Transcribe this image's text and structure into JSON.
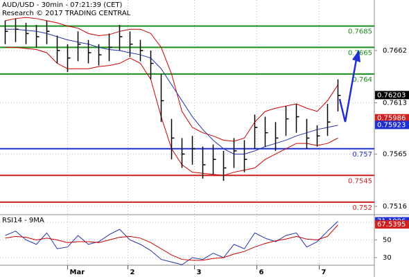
{
  "chart_data": [
    {
      "type": "ohlc",
      "title": "AUD/USD - 30min - 07:21:39 (CET)",
      "subtitle": "Research © 2017 TRADING CENTRAL",
      "x": [
        0,
        1,
        2,
        3,
        4,
        5,
        6,
        7,
        8,
        9,
        10,
        11,
        12,
        13,
        14,
        15,
        16,
        17,
        18,
        19,
        20,
        21,
        22,
        23,
        24,
        25,
        26,
        27,
        28,
        29,
        30,
        31,
        32
      ],
      "xlim": [
        -0.5,
        35.5
      ],
      "xticks": [
        {
          "value": 6,
          "label": "Mar"
        },
        {
          "value": 11.8,
          "label": "2"
        },
        {
          "value": 18.2,
          "label": "3"
        },
        {
          "value": 24.2,
          "label": "6"
        },
        {
          "value": 30.2,
          "label": "7"
        }
      ],
      "high": [
        0.769,
        0.7692,
        0.7688,
        0.7686,
        0.769,
        0.7676,
        0.7668,
        0.768,
        0.7672,
        0.7668,
        0.7678,
        0.7686,
        0.768,
        0.7672,
        0.7662,
        0.764,
        0.7598,
        0.758,
        0.7582,
        0.7572,
        0.7574,
        0.7568,
        0.758,
        0.7578,
        0.7602,
        0.76,
        0.7595,
        0.761,
        0.7612,
        0.7598,
        0.7592,
        0.7612,
        0.7635
      ],
      "low": [
        0.7668,
        0.767,
        0.7668,
        0.7665,
        0.7668,
        0.765,
        0.7642,
        0.7652,
        0.765,
        0.7648,
        0.7652,
        0.7662,
        0.7656,
        0.7652,
        0.7635,
        0.7595,
        0.756,
        0.7552,
        0.7555,
        0.7542,
        0.7546,
        0.754,
        0.7552,
        0.7548,
        0.757,
        0.7572,
        0.7568,
        0.7582,
        0.7585,
        0.757,
        0.7572,
        0.7582,
        0.7605
      ],
      "close": [
        0.768,
        0.7682,
        0.7678,
        0.7675,
        0.768,
        0.7662,
        0.7655,
        0.7668,
        0.766,
        0.7658,
        0.7665,
        0.7675,
        0.7668,
        0.7662,
        0.765,
        0.7615,
        0.758,
        0.7565,
        0.757,
        0.7555,
        0.756,
        0.7552,
        0.7568,
        0.756,
        0.759,
        0.7585,
        0.758,
        0.7598,
        0.76,
        0.758,
        0.7582,
        0.7595,
        0.762
      ],
      "bands": [
        {
          "color": "#cc0000",
          "values": [
            0.769,
            0.7692,
            0.7693,
            0.7692,
            0.769,
            0.7688,
            0.7685,
            0.7683,
            0.7678,
            0.7676,
            0.7677,
            0.768,
            0.7682,
            0.7682,
            0.7678,
            0.7665,
            0.764,
            0.7605,
            0.759,
            0.7585,
            0.7582,
            0.7578,
            0.7577,
            0.758,
            0.7595,
            0.7605,
            0.7608,
            0.761,
            0.7612,
            0.7608,
            0.7605,
            0.7615,
            0.763
          ]
        },
        {
          "color": "#cc0000",
          "values": [
            0.7665,
            0.7665,
            0.7664,
            0.7663,
            0.766,
            0.765,
            0.7645,
            0.7645,
            0.7645,
            0.7647,
            0.7648,
            0.765,
            0.7655,
            0.765,
            0.7635,
            0.76,
            0.757,
            0.7555,
            0.7548,
            0.7547,
            0.7546,
            0.7545,
            0.7548,
            0.755,
            0.7552,
            0.756,
            0.7565,
            0.757,
            0.7575,
            0.7575,
            0.7573,
            0.7575,
            0.758
          ]
        },
        {
          "color": "#2233aa",
          "values": [
            0.7682,
            0.7682,
            0.7681,
            0.768,
            0.7678,
            0.7675,
            0.7672,
            0.767,
            0.7668,
            0.7665,
            0.7663,
            0.7662,
            0.766,
            0.7658,
            0.7655,
            0.7645,
            0.763,
            0.7615,
            0.76,
            0.7588,
            0.7578,
            0.757,
            0.7565,
            0.7565,
            0.7568,
            0.7572,
            0.7575,
            0.7578,
            0.7582,
            0.7585,
            0.7588,
            0.759,
            0.7592
          ]
        }
      ],
      "levels": [
        {
          "value": 0.7685,
          "color": "#1a8c1a"
        },
        {
          "value": 0.7665,
          "color": "#1a8c1a"
        },
        {
          "value": 0.764,
          "color": "#1a8c1a"
        },
        {
          "value": 0.757,
          "color": "#1f2fd0"
        },
        {
          "value": 0.7545,
          "color": "#d01f1f"
        },
        {
          "value": 0.752,
          "color": "#d01f1f"
        }
      ],
      "ylim": [
        0.75082,
        0.77094
      ],
      "yticks": [
        0.7662,
        0.7613,
        0.7565,
        0.7516
      ],
      "markers": [
        {
          "value": 0.76203,
          "color": "#000000"
        },
        {
          "value": 0.75986,
          "color": "#d01f1f"
        },
        {
          "value": 0.75923,
          "color": "#1f2fd0"
        }
      ]
    },
    {
      "type": "line",
      "title": "RSI14 - 9MA",
      "x": [
        0,
        1,
        2,
        3,
        4,
        5,
        6,
        7,
        8,
        9,
        10,
        11,
        12,
        13,
        14,
        15,
        16,
        17,
        18,
        19,
        20,
        21,
        22,
        23,
        24,
        25,
        26,
        27,
        28,
        29,
        30,
        31,
        32
      ],
      "xlim": [
        -0.5,
        35.5
      ],
      "series": [
        {
          "color": "#2233aa",
          "values": [
            55,
            60,
            50,
            45,
            58,
            40,
            42,
            55,
            45,
            48,
            56,
            62,
            50,
            45,
            38,
            28,
            25,
            22,
            30,
            28,
            35,
            30,
            45,
            40,
            58,
            52,
            48,
            55,
            58,
            42,
            48,
            60,
            71
          ]
        },
        {
          "color": "#cc0000",
          "values": [
            52,
            54,
            53,
            50,
            52,
            50,
            47,
            48,
            48,
            47,
            50,
            53,
            54,
            52,
            47,
            40,
            33,
            28,
            27,
            27,
            29,
            30,
            34,
            37,
            42,
            46,
            49,
            51,
            54,
            51,
            50,
            54,
            67
          ]
        }
      ],
      "ylim": [
        12,
        77
      ],
      "yticks": [
        70,
        50,
        30
      ],
      "markers": [
        {
          "value": 71.1096,
          "color": "#1f2fd0"
        },
        {
          "value": 67.5395,
          "color": "#d01f1f"
        }
      ]
    }
  ]
}
